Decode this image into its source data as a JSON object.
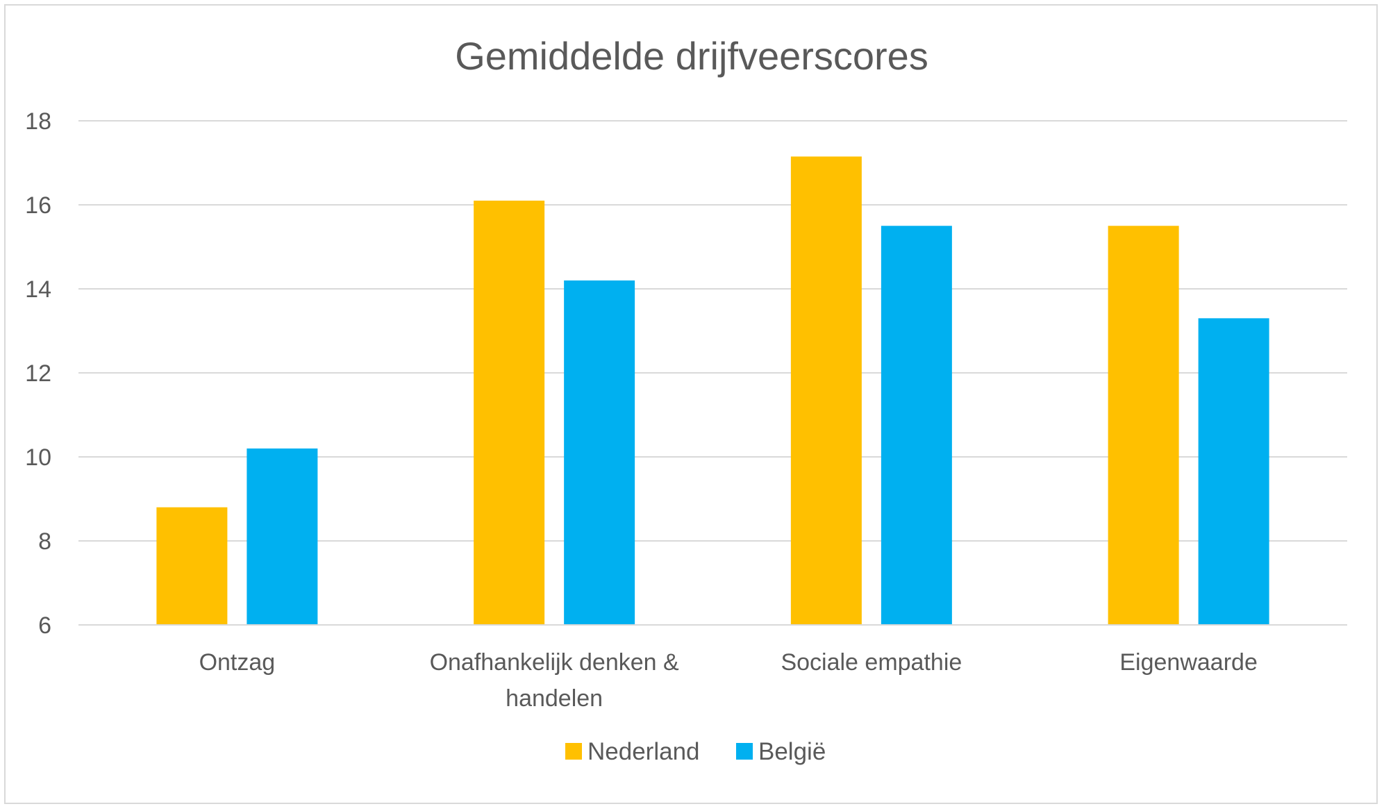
{
  "chart_data": {
    "type": "bar",
    "title": "Gemiddelde drijfveerscores",
    "xlabel": "",
    "ylabel": "",
    "ylim": [
      6,
      18
    ],
    "yticks": [
      6,
      8,
      10,
      12,
      14,
      16,
      18
    ],
    "grid": true,
    "legend_position": "bottom",
    "categories": [
      [
        "Ontzag"
      ],
      [
        "Onafhankelijk denken &",
        "handelen"
      ],
      [
        "Sociale empathie"
      ],
      [
        "Eigenwaarde"
      ]
    ],
    "series": [
      {
        "name": "Nederland",
        "color": "#FFC000",
        "values": [
          8.8,
          16.1,
          17.15,
          15.5
        ]
      },
      {
        "name": "België",
        "color": "#00B0F0",
        "values": [
          10.2,
          14.2,
          15.5,
          13.3
        ]
      }
    ]
  }
}
